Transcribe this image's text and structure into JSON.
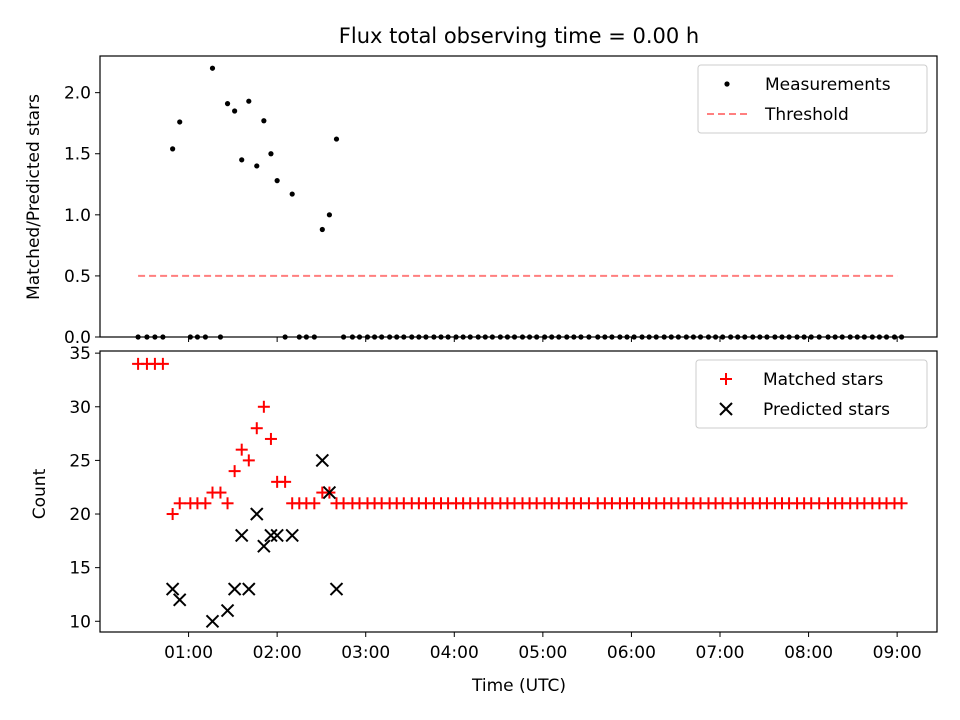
{
  "chart_data": [
    {
      "type": "scatter",
      "title": "Flux total observing time = 0.00 h",
      "xlabel": "",
      "ylabel": "Matched/Predicted stars",
      "x_unit": "hours UTC",
      "xlim": [
        0.0,
        9.45
      ],
      "ylim": [
        0.0,
        2.3
      ],
      "yticks": [
        "0.0",
        "0.5",
        "1.0",
        "1.5",
        "2.0"
      ],
      "grid": false,
      "legend": "upper right",
      "series": [
        {
          "name": "Measurements",
          "color": "#000000",
          "marker": "dot",
          "x": [
            0.43,
            0.53,
            0.62,
            0.71,
            0.82,
            0.9,
            1.02,
            1.1,
            1.19,
            1.27,
            1.36,
            1.44,
            1.52,
            1.6,
            1.68,
            1.77,
            1.85,
            1.93,
            2.0,
            2.09,
            2.17,
            2.25,
            2.33,
            2.42,
            2.51,
            2.59,
            2.67,
            2.75,
            2.85,
            2.93,
            3.02,
            3.1,
            3.18,
            3.27,
            3.35,
            3.43,
            3.52,
            3.6,
            3.68,
            3.77,
            3.85,
            3.93,
            4.02,
            4.1,
            4.18,
            4.27,
            4.35,
            4.43,
            4.52,
            4.6,
            4.68,
            4.77,
            4.85,
            4.93,
            5.02,
            5.1,
            5.18,
            5.27,
            5.35,
            5.43,
            5.52,
            5.62,
            5.7,
            5.78,
            5.87,
            5.95,
            6.03,
            6.12,
            6.2,
            6.28,
            6.37,
            6.45,
            6.53,
            6.62,
            6.7,
            6.78,
            6.87,
            6.95,
            7.03,
            7.12,
            7.2,
            7.28,
            7.37,
            7.45,
            7.53,
            7.62,
            7.7,
            7.78,
            7.87,
            7.95,
            8.03,
            8.12,
            8.22,
            8.3,
            8.38,
            8.47,
            8.55,
            8.63,
            8.72,
            8.8,
            8.88,
            8.97,
            9.05
          ],
          "y": [
            0,
            0,
            0,
            0,
            1.54,
            1.76,
            0,
            0,
            0,
            2.2,
            0,
            1.91,
            1.85,
            1.45,
            1.93,
            1.4,
            1.77,
            1.5,
            1.28,
            0,
            1.17,
            0,
            0,
            0,
            0.88,
            1.0,
            1.62,
            0,
            0,
            0,
            0,
            0,
            0,
            0,
            0,
            0,
            0,
            0,
            0,
            0,
            0,
            0,
            0,
            0,
            0,
            0,
            0,
            0,
            0,
            0,
            0,
            0,
            0,
            0,
            0,
            0,
            0,
            0,
            0,
            0,
            0,
            0,
            0,
            0,
            0,
            0,
            0,
            0,
            0,
            0,
            0,
            0,
            0,
            0,
            0,
            0,
            0,
            0,
            0,
            0,
            0,
            0,
            0,
            0,
            0,
            0,
            0,
            0,
            0,
            0,
            0,
            0,
            0,
            0,
            0,
            0,
            0,
            0,
            0,
            0,
            0,
            0,
            0
          ]
        },
        {
          "name": "Threshold",
          "color": "#ff7f7f",
          "line": "dashed",
          "x": [
            0.43,
            9.0
          ],
          "y": [
            0.5,
            0.5
          ]
        }
      ]
    },
    {
      "type": "scatter",
      "title": "",
      "xlabel": "Time (UTC)",
      "ylabel": "Count",
      "x_unit": "hours UTC",
      "xlim": [
        0.0,
        9.45
      ],
      "ylim": [
        9.0,
        35.2
      ],
      "yticks": [
        "10",
        "15",
        "20",
        "25",
        "30",
        "35"
      ],
      "xticks": [
        "01:00",
        "02:00",
        "03:00",
        "04:00",
        "05:00",
        "06:00",
        "07:00",
        "08:00",
        "09:00"
      ],
      "grid": false,
      "legend": "upper right",
      "series": [
        {
          "name": "Matched stars",
          "color": "#ff0000",
          "marker": "plus",
          "x": [
            0.43,
            0.53,
            0.62,
            0.71,
            0.82,
            0.9,
            1.02,
            1.1,
            1.19,
            1.27,
            1.36,
            1.44,
            1.52,
            1.6,
            1.68,
            1.77,
            1.85,
            1.93,
            2.0,
            2.09,
            2.17,
            2.25,
            2.33,
            2.42,
            2.51,
            2.59,
            2.67,
            2.75,
            2.85,
            2.93,
            3.02,
            3.1,
            3.18,
            3.27,
            3.35,
            3.43,
            3.52,
            3.6,
            3.68,
            3.77,
            3.85,
            3.93,
            4.02,
            4.1,
            4.18,
            4.27,
            4.35,
            4.43,
            4.52,
            4.6,
            4.68,
            4.77,
            4.85,
            4.93,
            5.02,
            5.1,
            5.18,
            5.27,
            5.35,
            5.43,
            5.52,
            5.62,
            5.7,
            5.78,
            5.87,
            5.95,
            6.03,
            6.12,
            6.2,
            6.28,
            6.37,
            6.45,
            6.53,
            6.62,
            6.7,
            6.78,
            6.87,
            6.95,
            7.03,
            7.12,
            7.2,
            7.28,
            7.37,
            7.45,
            7.53,
            7.62,
            7.7,
            7.78,
            7.87,
            7.95,
            8.03,
            8.12,
            8.22,
            8.3,
            8.38,
            8.47,
            8.55,
            8.63,
            8.72,
            8.8,
            8.88,
            8.97,
            9.05
          ],
          "y": [
            34,
            34,
            34,
            34,
            20,
            21,
            21,
            21,
            21,
            22,
            22,
            21,
            24,
            26,
            25,
            28,
            30,
            27,
            23,
            23,
            21,
            21,
            21,
            21,
            22,
            22,
            21,
            21,
            21,
            21,
            21,
            21,
            21,
            21,
            21,
            21,
            21,
            21,
            21,
            21,
            21,
            21,
            21,
            21,
            21,
            21,
            21,
            21,
            21,
            21,
            21,
            21,
            21,
            21,
            21,
            21,
            21,
            21,
            21,
            21,
            21,
            21,
            21,
            21,
            21,
            21,
            21,
            21,
            21,
            21,
            21,
            21,
            21,
            21,
            21,
            21,
            21,
            21,
            21,
            21,
            21,
            21,
            21,
            21,
            21,
            21,
            21,
            21,
            21,
            21,
            21,
            21,
            21,
            21,
            21,
            21,
            21,
            21,
            21,
            21,
            21,
            21,
            21
          ]
        },
        {
          "name": "Predicted stars",
          "color": "#000000",
          "marker": "x",
          "x": [
            0.82,
            0.9,
            1.27,
            1.44,
            1.52,
            1.6,
            1.68,
            1.77,
            1.85,
            1.93,
            2.0,
            2.17,
            2.51,
            2.59,
            2.67
          ],
          "y": [
            13,
            12,
            10,
            11,
            13,
            18,
            13,
            20,
            17,
            18,
            18,
            18,
            25,
            22,
            13
          ]
        }
      ]
    }
  ]
}
